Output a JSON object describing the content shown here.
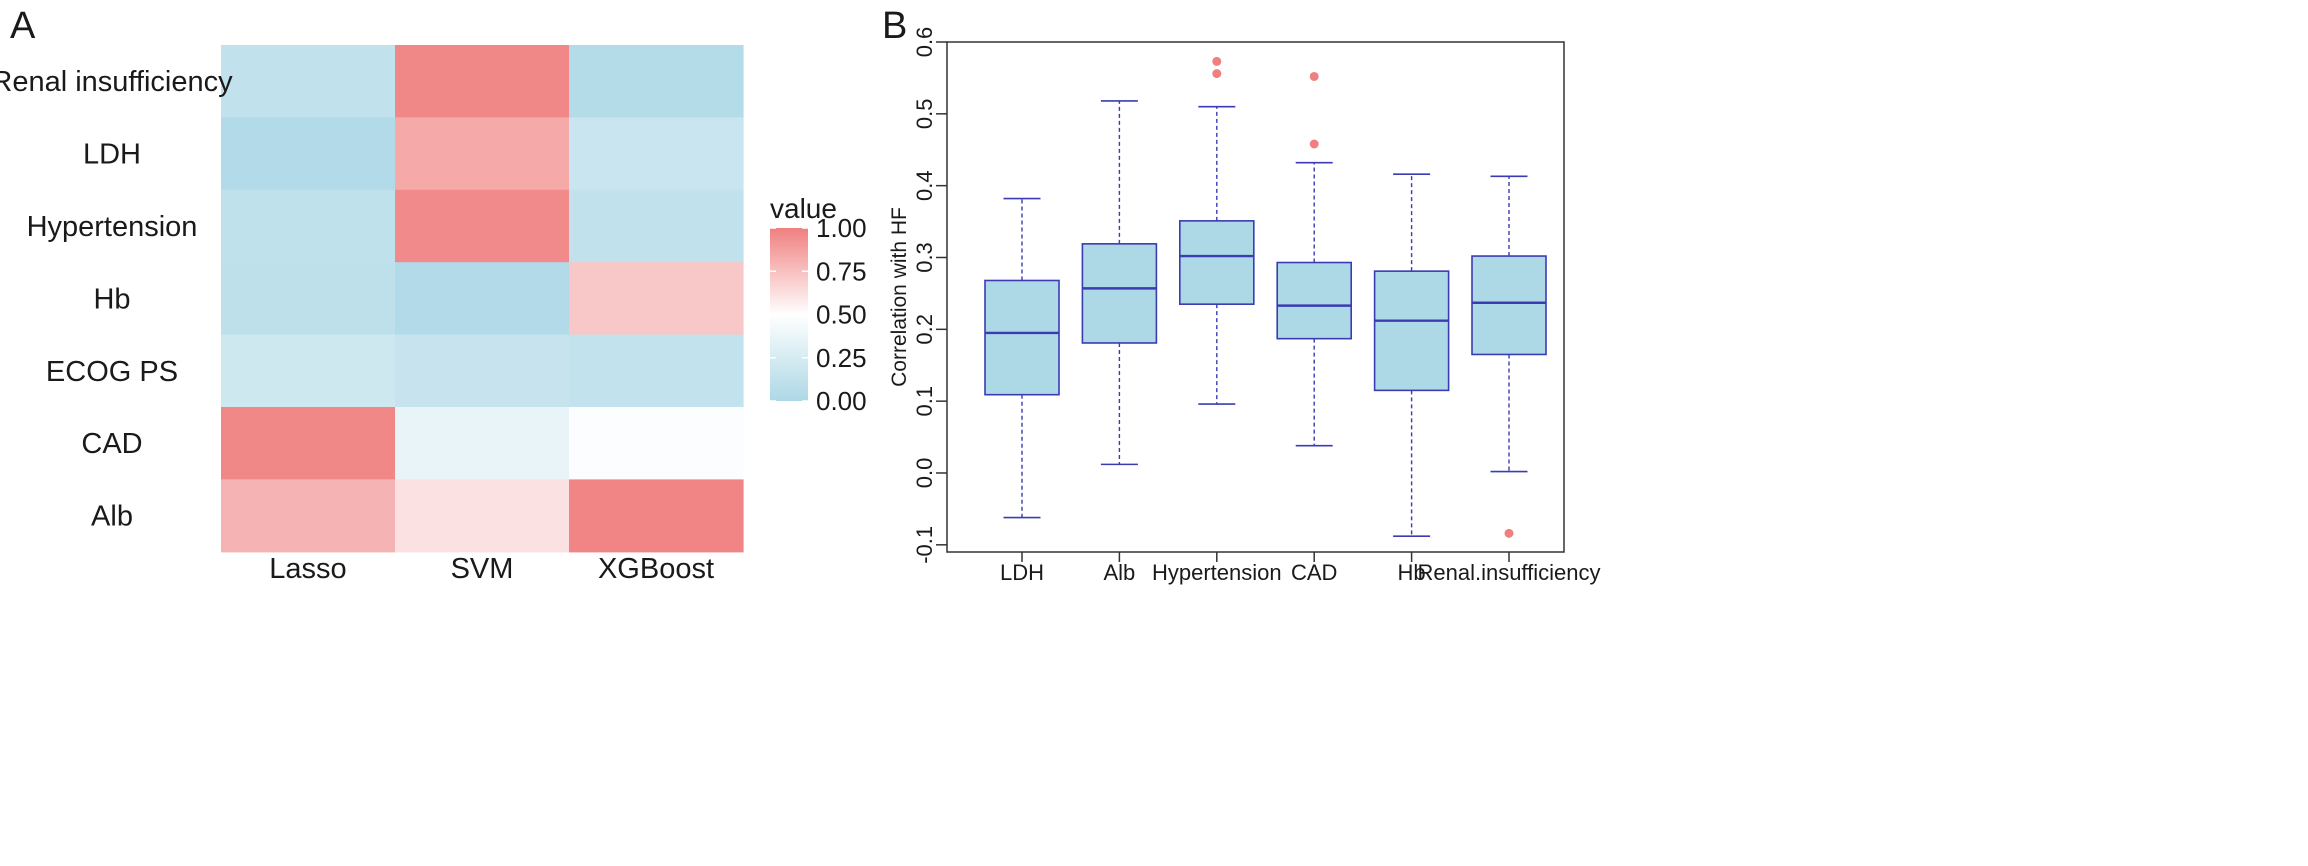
{
  "chart_data": [
    {
      "type": "heatmap",
      "panel_label": "A",
      "columns": [
        "Lasso",
        "SVM",
        "XGBoost"
      ],
      "rows": [
        "Renal insufficiency",
        "LDH",
        "Hypertension",
        "Hb",
        "ECOG PS",
        "CAD",
        "Alb"
      ],
      "values": [
        [
          0.12,
          0.97,
          0.04
        ],
        [
          0.03,
          0.84,
          0.17
        ],
        [
          0.11,
          0.96,
          0.12
        ],
        [
          0.1,
          0.03,
          0.72
        ],
        [
          0.2,
          0.16,
          0.13
        ],
        [
          0.97,
          0.36,
          0.48
        ],
        [
          0.8,
          0.62,
          0.98
        ]
      ],
      "legend": {
        "title": "value",
        "ticks": [
          "1.00",
          "0.75",
          "0.50",
          "0.25",
          "0.00"
        ],
        "range": [
          0,
          1
        ],
        "low_color": "#add8e6",
        "mid_color": "#ffffff",
        "high_color": "#f08080"
      }
    },
    {
      "type": "boxplot",
      "panel_label": "B",
      "ylabel": "Correlation with HF",
      "ylim": [
        -0.11,
        0.6
      ],
      "yticks": [
        "-0.1",
        "0.0",
        "0.1",
        "0.2",
        "0.3",
        "0.4",
        "0.5",
        "0.6"
      ],
      "categories": [
        "LDH",
        "Alb",
        "Hypertension",
        "CAD",
        "Hb",
        "Renal.insufficiency"
      ],
      "boxes": [
        {
          "min": -0.062,
          "q1": 0.109,
          "median": 0.195,
          "q3": 0.268,
          "max": 0.382,
          "outliers": []
        },
        {
          "min": 0.012,
          "q1": 0.181,
          "median": 0.257,
          "q3": 0.319,
          "max": 0.518,
          "outliers": []
        },
        {
          "min": 0.096,
          "q1": 0.235,
          "median": 0.302,
          "q3": 0.351,
          "max": 0.51,
          "outliers": [
            0.556,
            0.573
          ]
        },
        {
          "min": 0.038,
          "q1": 0.187,
          "median": 0.233,
          "q3": 0.293,
          "max": 0.432,
          "outliers": [
            0.458,
            0.552
          ]
        },
        {
          "min": -0.088,
          "q1": 0.115,
          "median": 0.212,
          "q3": 0.281,
          "max": 0.416,
          "outliers": []
        },
        {
          "min": 0.002,
          "q1": 0.165,
          "median": 0.237,
          "q3": 0.302,
          "max": 0.413,
          "outliers": [
            -0.084
          ]
        }
      ],
      "box_fill": "#add8e6",
      "box_border": "#3b3bb3",
      "outlier_color": "#f08080"
    }
  ]
}
